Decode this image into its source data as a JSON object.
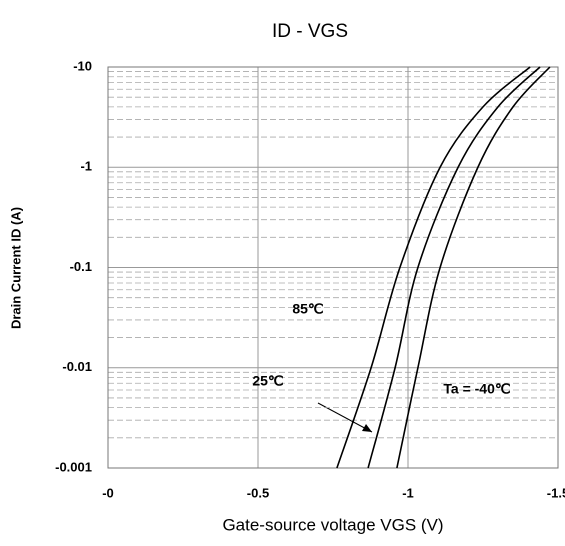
{
  "chart_data": {
    "type": "line",
    "title": "ID - VGS",
    "x_label": "Gate-source voltage VGS (V)",
    "y_label": "Drain Current ID (A)",
    "xlim": [
      0,
      1.5
    ],
    "xticks": [
      {
        "value": 0,
        "label": "-0"
      },
      {
        "value": 0.5,
        "label": "-0.5"
      },
      {
        "value": 1,
        "label": "-1"
      },
      {
        "value": 1.5,
        "label": "-1.5"
      }
    ],
    "ylim": [
      0.001,
      10
    ],
    "log_y": true,
    "yticks": [
      {
        "value": 10,
        "label": "-10"
      },
      {
        "value": 1,
        "label": "-1"
      },
      {
        "value": 0.1,
        "label": "-0.1"
      },
      {
        "value": 0.01,
        "label": "-0.01"
      },
      {
        "value": 0.001,
        "label": "-0.001"
      }
    ],
    "grid": true,
    "series": [
      {
        "name": "85℃",
        "color": "#000000",
        "x": [
          0.763,
          0.877,
          0.973,
          1.107,
          1.25,
          1.407
        ],
        "values": [
          0.001,
          0.01,
          0.1,
          1,
          4,
          10
        ]
      },
      {
        "name": "25℃",
        "color": "#000000",
        "x": [
          0.867,
          0.957,
          1.033,
          1.167,
          1.3,
          1.44
        ],
        "values": [
          0.001,
          0.01,
          0.1,
          1,
          4,
          10
        ]
      },
      {
        "name": "Ta = -40℃",
        "color": "#000000",
        "x": [
          0.963,
          1.033,
          1.107,
          1.233,
          1.35,
          1.473
        ],
        "values": [
          0.001,
          0.01,
          0.1,
          1,
          4,
          10
        ]
      }
    ]
  }
}
